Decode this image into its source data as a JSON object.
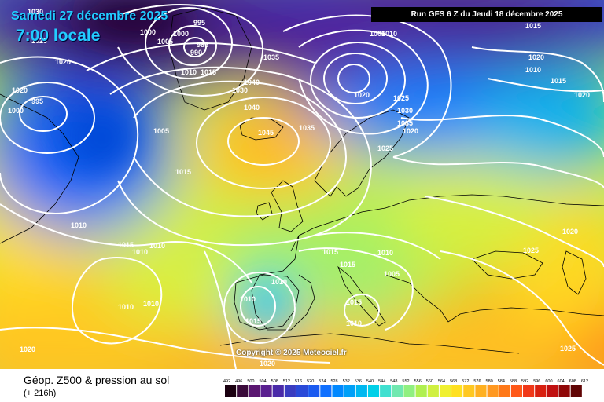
{
  "header": {
    "date": "Samedi 27 décembre 2025",
    "time": "7:00 locale",
    "run": "Run GFS 6 Z du Jeudi 18 décembre 2025"
  },
  "footer": {
    "copyright": "Copyright © 2025 Meteociel.fr",
    "title": "Géop. Z500 & pression au sol",
    "lead": "(+ 216h)"
  },
  "isobar_labels": [
    "1030",
    "1025",
    "995",
    "1000",
    "1005",
    "990",
    "985",
    "1020",
    "1000",
    "1010",
    "1015",
    "1020",
    "995",
    "1000",
    "1035",
    "1040",
    "1045",
    "1030",
    "1035",
    "1040",
    "1005",
    "1015",
    "1005",
    "1010",
    "1015",
    "1020",
    "1025",
    "1030",
    "1035",
    "1025",
    "1020",
    "1015",
    "1020",
    "1010",
    "1015",
    "1020",
    "1010",
    "1010",
    "1015",
    "1010",
    "1015",
    "1010",
    "1005",
    "1010",
    "1010",
    "1010",
    "1010",
    "1015",
    "1015",
    "1015",
    "1020",
    "1020",
    "1020",
    "1025",
    "1025",
    "1010"
  ],
  "colorbar_ticks": [
    "492",
    "496",
    "500",
    "504",
    "508",
    "512",
    "516",
    "520",
    "524",
    "528",
    "532",
    "536",
    "540",
    "544",
    "548",
    "552",
    "556",
    "560",
    "564",
    "568",
    "572",
    "576",
    "580",
    "584",
    "588",
    "592",
    "596",
    "600",
    "604",
    "608",
    "612"
  ],
  "colorbar_colors": [
    "#1a0010",
    "#3a0a3a",
    "#5a1670",
    "#5a2090",
    "#4a2aa8",
    "#3a3cc0",
    "#2a4ad8",
    "#1a5af0",
    "#1070ff",
    "#0088ff",
    "#00a0f8",
    "#00b8f0",
    "#00d0e8",
    "#40e0d0",
    "#70e8b0",
    "#90f080",
    "#b0f050",
    "#d0f040",
    "#f0f030",
    "#ffe020",
    "#ffc820",
    "#ffb020",
    "#ff9820",
    "#ff7818",
    "#ff5818",
    "#f03818",
    "#d82010",
    "#c01010",
    "#900808",
    "#600404"
  ]
}
